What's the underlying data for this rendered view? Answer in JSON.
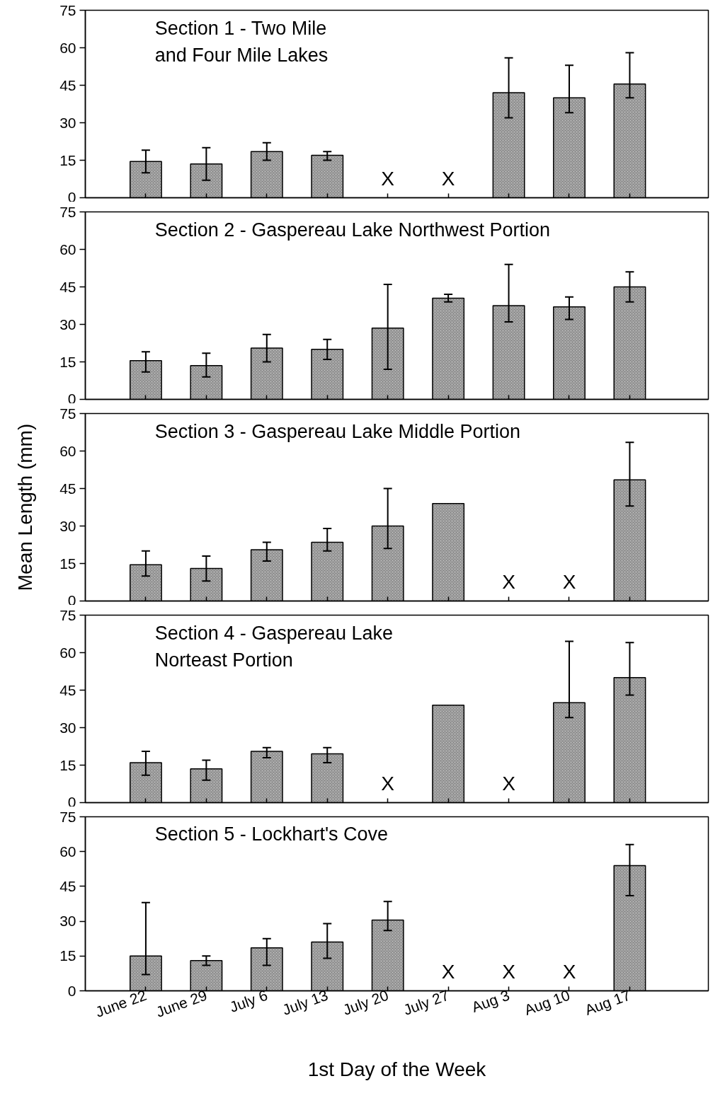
{
  "chart_data": [
    {
      "type": "bar",
      "title": "Section 1 - Two Mile\nand Four Mile Lakes",
      "categories": [
        "June 22",
        "June 29",
        "July 6",
        "July 13",
        "July 20",
        "July 27",
        "Aug 3",
        "Aug 10",
        "Aug 17"
      ],
      "color": "#8c8c8c",
      "values": [
        14.5,
        13.5,
        18.5,
        17,
        null,
        null,
        42,
        40,
        45.5
      ],
      "errors": [
        [
          10,
          19
        ],
        [
          7,
          20
        ],
        [
          15,
          22
        ],
        [
          15,
          18.5
        ],
        null,
        null,
        [
          32,
          56
        ],
        [
          34,
          53
        ],
        [
          40,
          58
        ]
      ],
      "annotations": [
        "X",
        "X"
      ],
      "ylim": [
        0,
        75
      ],
      "yticks": [
        0,
        15,
        30,
        45,
        60,
        75
      ],
      "tick_labels": "y"
    },
    {
      "type": "bar",
      "title": "Section 2 - Gaspereau Lake Northwest Portion",
      "categories": [
        "June 22",
        "June 29",
        "July 6",
        "July 13",
        "July 20",
        "July 27",
        "Aug 3",
        "Aug 10",
        "Aug 17"
      ],
      "color": "#8c8c8c",
      "values": [
        15.5,
        13.5,
        20.5,
        20,
        28.5,
        40.5,
        37.5,
        37,
        45
      ],
      "errors": [
        [
          11,
          19
        ],
        [
          9,
          18.5
        ],
        [
          15,
          26
        ],
        [
          16,
          24
        ],
        [
          12,
          46
        ],
        [
          39,
          42
        ],
        [
          31,
          54
        ],
        [
          32,
          41
        ],
        [
          39,
          51
        ]
      ],
      "ylim": [
        0,
        75
      ],
      "yticks": [
        0,
        15,
        30,
        45,
        60,
        75
      ],
      "tick_labels": "y"
    },
    {
      "type": "bar",
      "title": "Section 3 - Gaspereau Lake Middle Portion",
      "ylabel": "Mean Length (mm)",
      "categories": [
        "June 22",
        "June 29",
        "July 6",
        "July 13",
        "July 20",
        "July 27",
        "Aug 3",
        "Aug 10",
        "Aug 17"
      ],
      "color": "#8c8c8c",
      "values": [
        14.5,
        13,
        20.5,
        23.5,
        30,
        39,
        null,
        null,
        48.5
      ],
      "errors": [
        [
          10,
          20
        ],
        [
          8,
          18
        ],
        [
          16,
          23.5
        ],
        [
          20,
          29
        ],
        [
          21,
          45
        ],
        null,
        null,
        null,
        [
          38,
          63.5
        ]
      ],
      "annotations": [
        "X",
        "X"
      ],
      "ylim": [
        0,
        75
      ],
      "yticks": [
        0,
        15,
        30,
        45,
        60,
        75
      ],
      "tick_labels": "y"
    },
    {
      "type": "bar",
      "title": "Section 4 - Gaspereau Lake\nNorteast Portion",
      "categories": [
        "June 22",
        "June 29",
        "July 6",
        "July 13",
        "July 20",
        "July 27",
        "Aug 3",
        "Aug 10",
        "Aug 17"
      ],
      "color": "#8c8c8c",
      "values": [
        16,
        13.5,
        20.5,
        19.5,
        null,
        39,
        null,
        40,
        50
      ],
      "errors": [
        [
          11,
          20.5
        ],
        [
          9,
          17
        ],
        [
          18,
          22
        ],
        [
          16,
          22
        ],
        null,
        null,
        null,
        [
          34,
          64.5
        ],
        [
          43,
          64
        ]
      ],
      "annotations": [
        "X",
        "X"
      ],
      "ylim": [
        0,
        75
      ],
      "yticks": [
        0,
        15,
        30,
        45,
        60,
        75
      ],
      "tick_labels": "y"
    },
    {
      "type": "bar",
      "title": "Section 5 - Lockhart's Cove",
      "xlabel": "1st Day of the Week",
      "categories": [
        "June 22",
        "June 29",
        "July 6",
        "July 13",
        "July 20",
        "July 27",
        "Aug 3",
        "Aug 10",
        "Aug 17"
      ],
      "color": "#8c8c8c",
      "values": [
        15,
        13,
        18.5,
        21,
        30.5,
        null,
        null,
        null,
        54
      ],
      "errors": [
        [
          7,
          38
        ],
        [
          11,
          15
        ],
        [
          11,
          22.5
        ],
        [
          14,
          29
        ],
        [
          26,
          38.5
        ],
        null,
        null,
        null,
        [
          41,
          63
        ]
      ],
      "annotations": [
        "X",
        "X",
        "X"
      ],
      "ylim": [
        0,
        75
      ],
      "yticks": [
        0,
        15,
        30,
        45,
        60,
        75
      ]
    }
  ]
}
